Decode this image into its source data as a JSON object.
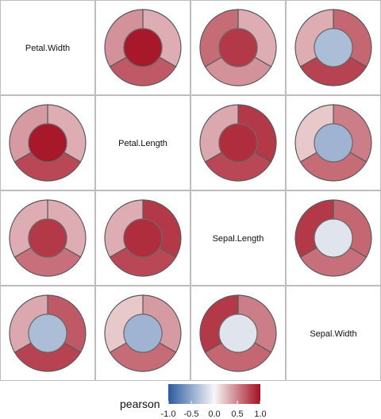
{
  "chart_data": {
    "type": "heatmap",
    "title": "",
    "variables": [
      "Petal.Width",
      "Petal.Length",
      "Sepal.Length",
      "Sepal.Width"
    ],
    "cells": [
      {
        "row": 0,
        "col": 1,
        "center": 0.96,
        "segments": [
          0.32,
          0.68,
          0.44
        ]
      },
      {
        "row": 0,
        "col": 2,
        "center": 0.82,
        "segments": [
          0.32,
          0.44,
          0.6
        ]
      },
      {
        "row": 0,
        "col": 3,
        "center": -0.37,
        "segments": [
          0.62,
          0.78,
          0.32
        ]
      },
      {
        "row": 1,
        "col": 0,
        "center": 0.96,
        "segments": [
          0.32,
          0.76,
          0.4
        ]
      },
      {
        "row": 1,
        "col": 2,
        "center": 0.87,
        "segments": [
          0.82,
          0.76,
          0.34
        ]
      },
      {
        "row": 1,
        "col": 3,
        "center": -0.43,
        "segments": [
          0.52,
          0.6,
          0.2
        ]
      },
      {
        "row": 2,
        "col": 0,
        "center": 0.82,
        "segments": [
          0.32,
          0.58,
          0.32
        ]
      },
      {
        "row": 2,
        "col": 1,
        "center": 0.87,
        "segments": [
          0.82,
          0.76,
          0.32
        ]
      },
      {
        "row": 2,
        "col": 3,
        "center": -0.12,
        "segments": [
          0.62,
          0.58,
          0.82
        ]
      },
      {
        "row": 3,
        "col": 0,
        "center": -0.37,
        "segments": [
          0.68,
          0.78,
          0.34
        ]
      },
      {
        "row": 3,
        "col": 1,
        "center": -0.43,
        "segments": [
          0.4,
          0.6,
          0.2
        ]
      },
      {
        "row": 3,
        "col": 2,
        "center": -0.12,
        "segments": [
          0.52,
          0.62,
          0.82
        ]
      }
    ],
    "legend": {
      "title": "pearson",
      "ticks": [
        "-1.0",
        "-0.5",
        "0.0",
        "0.5",
        "1.0"
      ],
      "range": [
        -1,
        1
      ],
      "position": "bottom"
    },
    "colors": {
      "low": "#2c5aa0",
      "mid": "#f7f7f7",
      "high": "#a50f22",
      "grid": "#bdbdbd",
      "ring_stroke": "#5a5a5a"
    }
  }
}
